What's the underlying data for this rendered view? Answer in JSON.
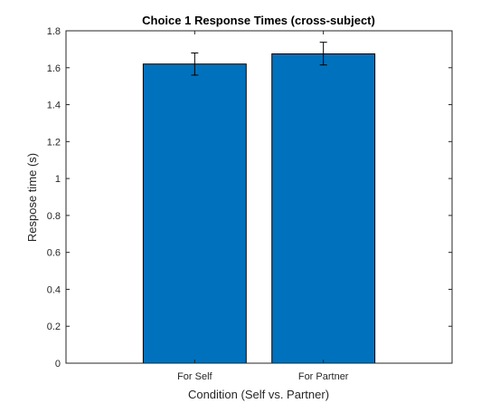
{
  "chart_data": {
    "type": "bar",
    "title": "Choice 1 Response Times (cross-subject)",
    "xlabel": "Condition (Self vs. Partner)",
    "ylabel": "Respose time (s)",
    "categories": [
      "For Self",
      "For Partner"
    ],
    "values": [
      1.62,
      1.675
    ],
    "error_bars": [
      {
        "lower": 1.56,
        "upper": 1.68
      },
      {
        "lower": 1.615,
        "upper": 1.738
      }
    ],
    "ylim": [
      0,
      1.8
    ],
    "yticks": [
      "0",
      "0.2",
      "0.4",
      "0.6",
      "0.8",
      "1",
      "1.2",
      "1.4",
      "1.6",
      "1.8"
    ],
    "ytick_values": [
      0,
      0.2,
      0.4,
      0.6,
      0.8,
      1,
      1.2,
      1.4,
      1.6,
      1.8
    ],
    "bar_color": "#0072BD",
    "edge_color": "#000000",
    "grid": false
  }
}
